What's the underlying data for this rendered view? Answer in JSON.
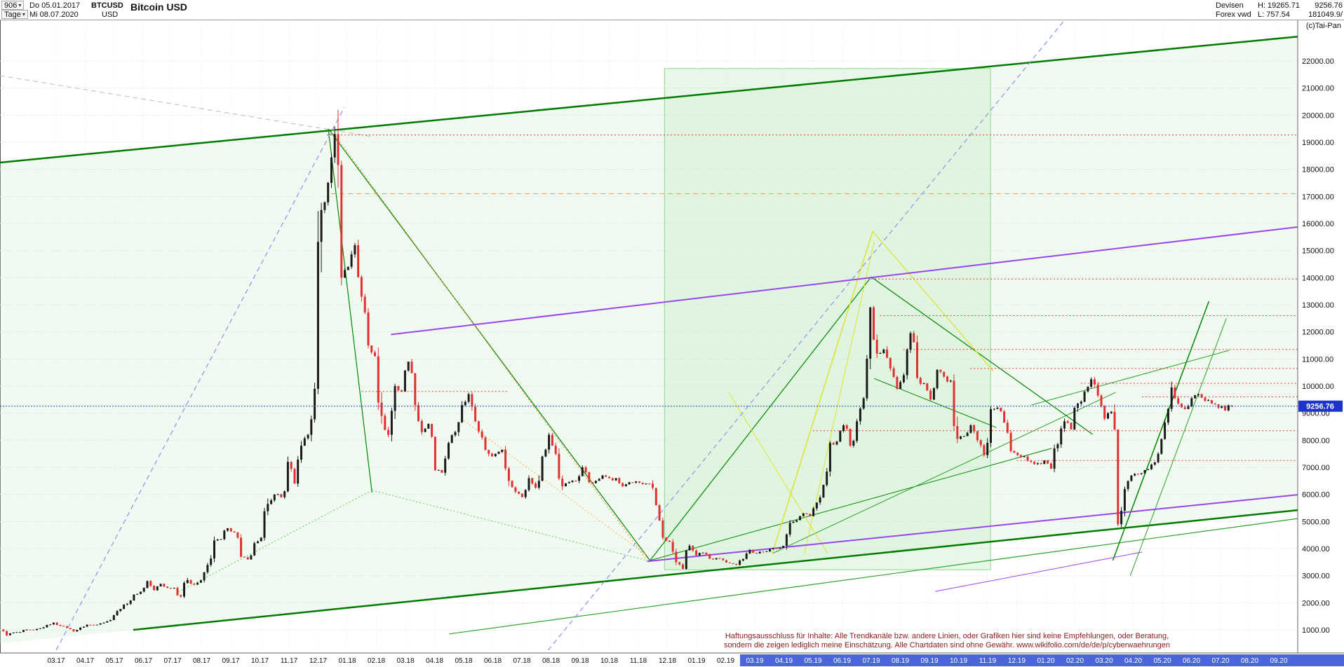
{
  "header": {
    "bars_count": "906",
    "start_date": "Do 05.01.2017",
    "symbol": "BTCUSD",
    "timeframe": "Tage",
    "end_date": "Mi 08.07.2020",
    "currency": "USD",
    "title": "Bitcoin USD",
    "feed1": "Devisen",
    "high_label": "H: 19265.71",
    "feed2": "Forex vwd",
    "low_label": "L: 757.54",
    "last_value": "9256.76",
    "volume_value": "181049.9/",
    "copyright": "(c)Tai-Pan"
  },
  "axis": {
    "price_labels": [
      "22000.00",
      "21000.00",
      "20000.00",
      "19000.00",
      "18000.00",
      "17000.00",
      "16000.00",
      "15000.00",
      "14000.00",
      "13000.00",
      "12000.00",
      "11000.00",
      "10000.00",
      "9000.00",
      "8000.00",
      "7000.00",
      "6000.00",
      "5000.00",
      "4000.00",
      "3000.00",
      "2000.00",
      "1000.00"
    ],
    "current_price_tag": "9256.76",
    "months": [
      "03.17",
      "04.17",
      "05.17",
      "06.17",
      "07.17",
      "08.17",
      "09.17",
      "10.17",
      "11.17",
      "12.17",
      "01.18",
      "02.18",
      "03.18",
      "04.18",
      "05.18",
      "06.18",
      "07.18",
      "08.18",
      "09.18",
      "10.18",
      "11.18",
      "12.18",
      "01.19",
      "02.19",
      "03.19",
      "04.19",
      "05.19",
      "06.19",
      "07.19",
      "08.19",
      "09.19",
      "10.19",
      "11.19",
      "12.19",
      "01.20",
      "02.20",
      "03.20",
      "04.20",
      "05.20",
      "06.20",
      "07.20",
      "08.20",
      "09.20"
    ],
    "highlight_start_index": 24,
    "highlight_color": "#4a66d8"
  },
  "disclaimer": {
    "line1": "Haftungsausschluss für Inhalte: Alle Trendkanäle bzw. andere Linien, oder Grafiken hier sind keine Empfehlungen, oder Beratung,",
    "line2": "sondern die zeigen lediglich meine Einschätzung. Alle Chartdaten sind ohne Gewähr.  www.wikifolio.com/de/de/p/cyberwaehrungen"
  },
  "chart_data": {
    "type": "candlestick",
    "title": "Bitcoin USD",
    "symbol": "BTCUSD",
    "start_date": "05.01.2017",
    "end_date": "08.07.2020",
    "interval_days": 7,
    "high": 19265.71,
    "low": 757.54,
    "ylim": [
      1000,
      22000
    ],
    "price_step": 1000,
    "colors": {
      "up": "#1a1a1a",
      "down": "#e03030"
    },
    "current_price": {
      "value": 9256.76,
      "color": "#2244cc"
    },
    "weekly_close": [
      1010,
      800,
      900,
      920,
      1010,
      990,
      1060,
      1180,
      1270,
      1150,
      1070,
      940,
      1080,
      1190,
      1180,
      1240,
      1320,
      1540,
      1770,
      1960,
      2300,
      2410,
      2800,
      2460,
      2700,
      2550,
      2550,
      2230,
      2840,
      2670,
      2830,
      3400,
      4300,
      4350,
      4750,
      4600,
      3700,
      3600,
      4200,
      4400,
      5650,
      6000,
      5900,
      7200,
      6400,
      7800,
      8200,
      9900,
      16500,
      17500,
      19300,
      14000,
      14400,
      15200,
      13300,
      11500,
      11100,
      8900,
      8200,
      10000,
      9800,
      10900,
      9300,
      8300,
      8600,
      6900,
      6800,
      7900,
      8300,
      9300,
      9700,
      8700,
      8100,
      7500,
      7500,
      7650,
      6500,
      6100,
      5900,
      6600,
      6250,
      7400,
      8200,
      7500,
      6300,
      6450,
      6500,
      7000,
      6450,
      6500,
      6700,
      6600,
      6600,
      6300,
      6450,
      6480,
      6380,
      6400,
      5600,
      4400,
      4250,
      3500,
      3250,
      4100,
      3750,
      3850,
      3630,
      3650,
      3570,
      3460,
      3400,
      3620,
      3950,
      3820,
      3880,
      3980,
      4000,
      4100,
      4950,
      5050,
      5300,
      5200,
      5700,
      6350,
      7900,
      7950,
      8550,
      7800,
      8700,
      9550,
      12900,
      11200,
      11350,
      10650,
      9900,
      10400,
      11950,
      10300,
      10100,
      9500,
      10600,
      10350,
      10200,
      8050,
      8150,
      8550,
      8000,
      7450,
      9150,
      9200,
      8650,
      7600,
      7450,
      7400,
      7200,
      7150,
      7250,
      6950,
      7850,
      8700,
      8400,
      9350,
      9800,
      10250,
      9650,
      8800,
      9050,
      4900,
      6200,
      6700,
      6750,
      6900,
      7100,
      7500,
      8650,
      9950,
      9350,
      9150,
      9550,
      9700,
      9450,
      9350,
      9200,
      9100,
      9256.76
    ],
    "annotations": {
      "channel_fill": {
        "points": [
          [
            0.0723,
            18250
          ],
          [
            44.65,
            22900
          ],
          [
            44.65,
            5415
          ],
          [
            0.0723,
            494
          ]
        ],
        "fill": "rgba(208,238,208,0.30)"
      },
      "rects": [
        {
          "n": "highlight-zone-2019",
          "t1": 22.9,
          "p1": 3220,
          "t2": 34.1,
          "p2": 21720,
          "stroke": "#8ed88e",
          "fill": "rgba(205,240,205,0.45)"
        }
      ],
      "lines": [
        {
          "n": "upper-channel",
          "t1": 0.07,
          "p1": 18250,
          "t2": 44.65,
          "p2": 22900,
          "c": "#007a00",
          "w": 2.5,
          "s": "solid"
        },
        {
          "n": "lower-channel",
          "t1": 4.65,
          "p1": 1000,
          "t2": 44.65,
          "p2": 5420,
          "c": "#007a00",
          "w": 2.5,
          "s": "solid"
        },
        {
          "n": "lower-channel-2",
          "t1": 15.5,
          "p1": 850,
          "t2": 44.65,
          "p2": 5110,
          "c": "#2aa52a",
          "w": 1.2,
          "s": "solid"
        },
        {
          "n": "crash-2018-steep",
          "t1": 11.35,
          "p1": 19500,
          "t2": 12.85,
          "p2": 6070,
          "c": "#008800",
          "w": 1.2,
          "s": "solid"
        },
        {
          "n": "downtrend-2018",
          "t1": 11.35,
          "p1": 19500,
          "t2": 22.4,
          "p2": 3560,
          "c": "#008800",
          "w": 1.2,
          "s": "solid"
        },
        {
          "n": "downtrend-2018-orange",
          "t1": 11.45,
          "p1": 19440,
          "t2": 22.3,
          "p2": 3560,
          "c": "#ff8833",
          "w": 1,
          "s": "dot"
        },
        {
          "n": "support-2017-dotted",
          "t1": 6.2,
          "p1": 2400,
          "t2": 12.85,
          "p2": 6150,
          "c": "#55cc55",
          "w": 1,
          "s": "dot"
        },
        {
          "n": "support-2018-dotted",
          "t1": 12.85,
          "p1": 6150,
          "t2": 22.3,
          "p2": 3560,
          "c": "#55cc55",
          "w": 1,
          "s": "dot"
        },
        {
          "n": "downtrend-2018-orange2",
          "t1": 16.0,
          "p1": 8730,
          "t2": 22.3,
          "p2": 3740,
          "c": "#ffaa44",
          "w": 1,
          "s": "dot"
        },
        {
          "n": "uptrend-2019",
          "t1": 22.4,
          "p1": 3560,
          "t2": 30.0,
          "p2": 14030,
          "c": "#008800",
          "w": 1.2,
          "s": "solid"
        },
        {
          "n": "uptrend-2019-flat",
          "t1": 22.4,
          "p1": 3560,
          "t2": 36.2,
          "p2": 7700,
          "c": "#008800",
          "w": 1,
          "s": "solid"
        },
        {
          "n": "uptrend-2019-long",
          "t1": 26.6,
          "p1": 3820,
          "t2": 38.4,
          "p2": 9770,
          "c": "#2aa52a",
          "w": 1,
          "s": "solid"
        },
        {
          "n": "downtrend-2019",
          "t1": 30.0,
          "p1": 14030,
          "t2": 37.6,
          "p2": 8220,
          "c": "#008800",
          "w": 1.2,
          "s": "solid"
        },
        {
          "n": "downtrend-2019-inner",
          "t1": 30.1,
          "p1": 10280,
          "t2": 34.3,
          "p2": 8470,
          "c": "#008800",
          "w": 1,
          "s": "solid"
        },
        {
          "n": "yellow-rally-1",
          "t1": 26.6,
          "p1": 3820,
          "t2": 30.05,
          "p2": 15715,
          "c": "#e0e030",
          "w": 1.5,
          "s": "solid"
        },
        {
          "n": "yellow-rally-2",
          "t1": 27.7,
          "p1": 3790,
          "t2": 30.1,
          "p2": 15330,
          "c": "#e0e030",
          "w": 1,
          "s": "solid"
        },
        {
          "n": "yellow-decline",
          "t1": 30.05,
          "p1": 15715,
          "t2": 34.2,
          "p2": 10540,
          "c": "#e0e030",
          "w": 1.2,
          "s": "solid"
        },
        {
          "n": "yellow-cross",
          "t1": 25.1,
          "p1": 9770,
          "t2": 28.5,
          "p2": 3820,
          "c": "#e0e030",
          "w": 1,
          "s": "solid"
        },
        {
          "n": "tops-line-2020",
          "t1": 35.5,
          "p1": 9300,
          "t2": 42.3,
          "p2": 11320,
          "c": "#2aa52a",
          "w": 1,
          "s": "solid"
        },
        {
          "n": "recovery-2020",
          "t1": 38.3,
          "p1": 3560,
          "t2": 41.6,
          "p2": 13130,
          "c": "#008800",
          "w": 1.5,
          "s": "solid"
        },
        {
          "n": "recovery-2020-b",
          "t1": 38.9,
          "p1": 3000,
          "t2": 42.2,
          "p2": 12500,
          "c": "#2aa52a",
          "w": 1,
          "s": "solid"
        },
        {
          "n": "violet-resistance",
          "t1": 13.5,
          "p1": 11900,
          "t2": 44.65,
          "p2": 15870,
          "c": "#9944ee",
          "w": 2,
          "s": "solid"
        },
        {
          "n": "violet-support",
          "t1": 22.3,
          "p1": 3530,
          "t2": 44.65,
          "p2": 5990,
          "c": "#9944ee",
          "w": 2,
          "s": "solid"
        },
        {
          "n": "violet-minor",
          "t1": 32.2,
          "p1": 2420,
          "t2": 39.3,
          "p2": 3870,
          "c": "#9944ee",
          "w": 1,
          "s": "solid"
        },
        {
          "n": "blue-trend-2017",
          "t1": 2.0,
          "p1": 250,
          "t2": 11.9,
          "p2": 20290,
          "c": "#8892f0",
          "w": 1.2,
          "s": "dash"
        },
        {
          "n": "blue-trend-2019",
          "t1": 18.9,
          "p1": 250,
          "t2": 36.6,
          "p2": 23450,
          "c": "#8892f0",
          "w": 1.2,
          "s": "dash"
        },
        {
          "n": "gray-resistance",
          "t1": 0.07,
          "p1": 21460,
          "t2": 12.85,
          "p2": 19210,
          "c": "#bbbbbb",
          "w": 1,
          "s": "dash"
        },
        {
          "n": "res-19270",
          "t1": 11.3,
          "p1": 19270,
          "t2": 44.65,
          "p2": 19270,
          "c": "#ee3333",
          "w": 1,
          "s": "dot"
        },
        {
          "n": "res-17100",
          "t1": 11.45,
          "p1": 17100,
          "t2": 44.65,
          "p2": 17100,
          "c": "#ff9944",
          "w": 1,
          "s": "dash"
        },
        {
          "n": "res-13950",
          "t1": 30.0,
          "p1": 13950,
          "t2": 44.65,
          "p2": 13950,
          "c": "#ee3333",
          "w": 1,
          "s": "dot"
        },
        {
          "n": "res-12600",
          "t1": 30.3,
          "p1": 12600,
          "t2": 44.65,
          "p2": 12600,
          "c": "#ee3333",
          "w": 1,
          "s": "dot"
        },
        {
          "n": "res-11350",
          "t1": 31.1,
          "p1": 11350,
          "t2": 44.65,
          "p2": 11350,
          "c": "#ee3333",
          "w": 1,
          "s": "dot"
        },
        {
          "n": "res-10650",
          "t1": 33.4,
          "p1": 10650,
          "t2": 44.65,
          "p2": 10650,
          "c": "#ee3333",
          "w": 1,
          "s": "dot"
        },
        {
          "n": "res-10100",
          "t1": 37.2,
          "p1": 10100,
          "t2": 44.65,
          "p2": 10100,
          "c": "#ee3333",
          "w": 1,
          "s": "dot"
        },
        {
          "n": "res-9600",
          "t1": 39.3,
          "p1": 9600,
          "t2": 44.65,
          "p2": 9600,
          "c": "#ee3333",
          "w": 1,
          "s": "dot"
        },
        {
          "n": "res-8350",
          "t1": 28.0,
          "p1": 8350,
          "t2": 44.65,
          "p2": 8350,
          "c": "#ee3333",
          "w": 1,
          "s": "dot"
        },
        {
          "n": "res-7250",
          "t1": 35.0,
          "p1": 7250,
          "t2": 44.65,
          "p2": 7250,
          "c": "#ee3333",
          "w": 1,
          "s": "dot"
        },
        {
          "n": "res-9800-2018",
          "t1": 12.5,
          "p1": 9800,
          "t2": 17.5,
          "p2": 9800,
          "c": "#ee3333",
          "w": 1,
          "s": "dot"
        }
      ]
    }
  }
}
